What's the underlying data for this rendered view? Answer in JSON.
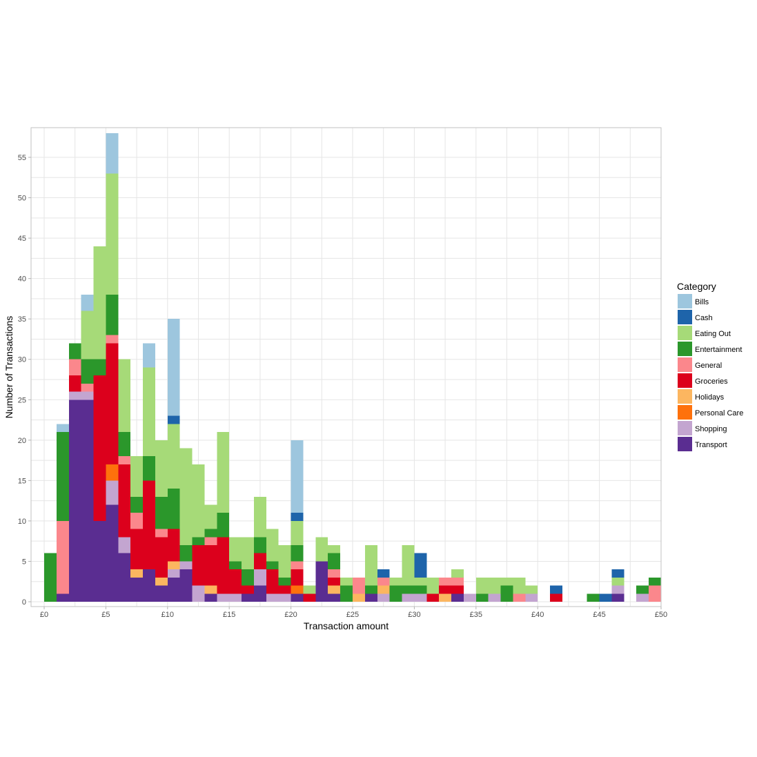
{
  "chart_data": {
    "type": "bar",
    "stacked": true,
    "xlabel": "Transaction amount",
    "ylabel": "Number of Transactions",
    "xlim": [
      -1,
      50
    ],
    "ylim": [
      -1,
      58
    ],
    "grid": true,
    "legend_position": "right",
    "bin_width": 1,
    "bin_starts": [
      0,
      1,
      2,
      3,
      4,
      5,
      6,
      7,
      8,
      9,
      10,
      11,
      12,
      13,
      14,
      15,
      16,
      17,
      18,
      19,
      20,
      21,
      22,
      23,
      24,
      25,
      26,
      27,
      28,
      29,
      30,
      31,
      32,
      33,
      34,
      35,
      36,
      37,
      38,
      39,
      40,
      41,
      42,
      43,
      44,
      45,
      46,
      47,
      48,
      49
    ],
    "x_ticks": [
      {
        "value": 0,
        "label": "£0"
      },
      {
        "value": 5,
        "label": "£5"
      },
      {
        "value": 10,
        "label": "£10"
      },
      {
        "value": 15,
        "label": "£15"
      },
      {
        "value": 20,
        "label": "£20"
      },
      {
        "value": 25,
        "label": "£25"
      },
      {
        "value": 30,
        "label": "£30"
      },
      {
        "value": 35,
        "label": "£35"
      },
      {
        "value": 40,
        "label": "£40"
      },
      {
        "value": 45,
        "label": "£45"
      },
      {
        "value": 50,
        "label": "£50"
      }
    ],
    "y_ticks": [
      {
        "value": 0,
        "label": "0"
      },
      {
        "value": 5,
        "label": "5"
      },
      {
        "value": 10,
        "label": "10"
      },
      {
        "value": 15,
        "label": "15"
      },
      {
        "value": 20,
        "label": "20"
      },
      {
        "value": 25,
        "label": "25"
      },
      {
        "value": 30,
        "label": "30"
      },
      {
        "value": 35,
        "label": "35"
      },
      {
        "value": 40,
        "label": "40"
      },
      {
        "value": 45,
        "label": "45"
      },
      {
        "value": 50,
        "label": "50"
      },
      {
        "value": 55,
        "label": "55"
      }
    ],
    "legend_title": "Category",
    "series": [
      {
        "name": "Transport",
        "color": "#5a2d91",
        "values": [
          0,
          1,
          25,
          25,
          10,
          12,
          6,
          3,
          4,
          2,
          3,
          4,
          0,
          1,
          0,
          0,
          1,
          2,
          0,
          0,
          1,
          0,
          5,
          1,
          0,
          0,
          1,
          0,
          0,
          0,
          0,
          0,
          0,
          1,
          0,
          0,
          0,
          0,
          0,
          0,
          0,
          0,
          0,
          0,
          0,
          0,
          1,
          0,
          0,
          0
        ]
      },
      {
        "name": "Shopping",
        "color": "#c3a5d0",
        "values": [
          0,
          0,
          1,
          1,
          0,
          3,
          2,
          0,
          0,
          0,
          1,
          1,
          2,
          0,
          1,
          1,
          0,
          2,
          1,
          1,
          0,
          0,
          0,
          0,
          0,
          0,
          0,
          1,
          0,
          1,
          1,
          0,
          0,
          0,
          1,
          0,
          1,
          0,
          0,
          1,
          0,
          0,
          0,
          0,
          0,
          0,
          1,
          0,
          1,
          0
        ]
      },
      {
        "name": "Personal Care",
        "color": "#fe710c",
        "values": [
          0,
          0,
          0,
          0,
          0,
          2,
          0,
          0,
          0,
          0,
          0,
          0,
          0,
          0,
          0,
          0,
          0,
          0,
          0,
          0,
          1,
          0,
          0,
          0,
          0,
          0,
          0,
          0,
          0,
          0,
          0,
          0,
          0,
          0,
          0,
          0,
          0,
          0,
          0,
          0,
          0,
          0,
          0,
          0,
          0,
          0,
          0,
          0,
          0,
          0
        ]
      },
      {
        "name": "Holidays",
        "color": "#fcb660",
        "values": [
          0,
          0,
          0,
          0,
          0,
          0,
          0,
          1,
          0,
          1,
          1,
          0,
          0,
          1,
          0,
          0,
          0,
          0,
          0,
          0,
          0,
          0,
          0,
          1,
          0,
          1,
          0,
          1,
          0,
          0,
          0,
          0,
          1,
          0,
          0,
          0,
          0,
          0,
          0,
          0,
          0,
          0,
          0,
          0,
          0,
          0,
          0,
          0,
          0,
          0
        ]
      },
      {
        "name": "Groceries",
        "color": "#dc001c",
        "values": [
          0,
          0,
          2,
          0,
          18,
          15,
          9,
          5,
          11,
          5,
          4,
          0,
          5,
          5,
          7,
          3,
          1,
          2,
          3,
          1,
          2,
          1,
          0,
          1,
          0,
          0,
          0,
          0,
          0,
          0,
          0,
          1,
          1,
          1,
          0,
          0,
          0,
          0,
          0,
          0,
          0,
          1,
          0,
          0,
          0,
          0,
          0,
          0,
          0,
          0
        ]
      },
      {
        "name": "General",
        "color": "#fb878c",
        "values": [
          0,
          9,
          2,
          1,
          0,
          1,
          1,
          2,
          0,
          1,
          0,
          0,
          0,
          1,
          0,
          0,
          0,
          0,
          0,
          0,
          1,
          0,
          0,
          1,
          0,
          2,
          0,
          1,
          0,
          0,
          0,
          0,
          1,
          1,
          0,
          0,
          0,
          0,
          1,
          0,
          0,
          0,
          0,
          0,
          0,
          0,
          0,
          0,
          0,
          2
        ]
      },
      {
        "name": "Entertainment",
        "color": "#2b972b",
        "values": [
          6,
          11,
          2,
          3,
          2,
          5,
          3,
          2,
          3,
          4,
          5,
          2,
          1,
          1,
          3,
          1,
          2,
          2,
          1,
          1,
          2,
          0,
          0,
          2,
          2,
          0,
          1,
          0,
          2,
          1,
          1,
          0,
          0,
          0,
          0,
          1,
          0,
          2,
          0,
          0,
          0,
          0,
          0,
          0,
          1,
          0,
          0,
          0,
          1,
          1
        ]
      },
      {
        "name": "Eating Out",
        "color": "#a6da78",
        "values": [
          0,
          0,
          0,
          6,
          14,
          15,
          9,
          5,
          11,
          7,
          8,
          12,
          9,
          3,
          10,
          3,
          4,
          5,
          4,
          4,
          3,
          1,
          3,
          1,
          1,
          0,
          5,
          0,
          1,
          5,
          1,
          2,
          0,
          1,
          0,
          2,
          2,
          1,
          2,
          1,
          0,
          0,
          0,
          0,
          0,
          0,
          1,
          0,
          0,
          0
        ]
      },
      {
        "name": "Cash",
        "color": "#1e64aa",
        "values": [
          0,
          0,
          0,
          0,
          0,
          0,
          0,
          0,
          0,
          0,
          1,
          0,
          0,
          0,
          0,
          0,
          0,
          0,
          0,
          0,
          1,
          0,
          0,
          0,
          0,
          0,
          0,
          1,
          0,
          0,
          3,
          0,
          0,
          0,
          0,
          0,
          0,
          0,
          0,
          0,
          0,
          1,
          0,
          0,
          0,
          1,
          1,
          0,
          0,
          0
        ]
      },
      {
        "name": "Bills",
        "color": "#9dc6de",
        "values": [
          0,
          1,
          0,
          2,
          0,
          5,
          0,
          0,
          3,
          0,
          12,
          0,
          0,
          0,
          0,
          0,
          0,
          0,
          0,
          0,
          9,
          0,
          0,
          0,
          0,
          0,
          0,
          0,
          0,
          0,
          0,
          0,
          0,
          0,
          0,
          0,
          0,
          0,
          0,
          0,
          0,
          0,
          0,
          0,
          0,
          0,
          0,
          0,
          0,
          0
        ]
      }
    ],
    "legend_order": [
      "Bills",
      "Cash",
      "Eating Out",
      "Entertainment",
      "General",
      "Groceries",
      "Holidays",
      "Personal Care",
      "Shopping",
      "Transport"
    ]
  }
}
